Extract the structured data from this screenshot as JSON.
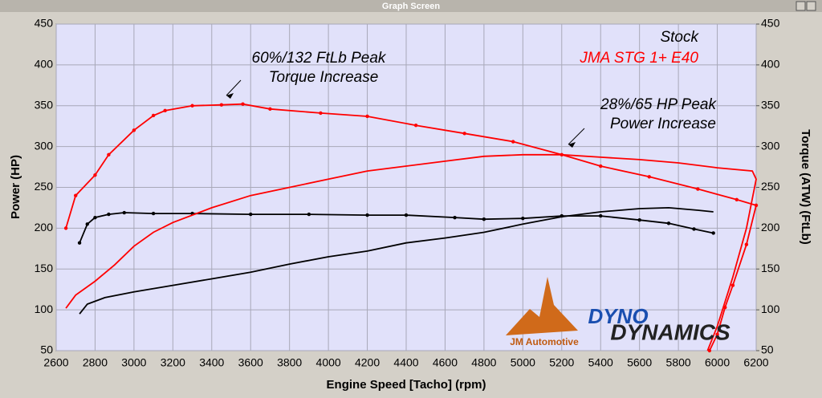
{
  "window_title": "Graph Screen",
  "logo": {
    "company": "JM Automotive",
    "brand_top": "DYNO",
    "brand_bottom": "DYNAMICS"
  },
  "chart_data": {
    "type": "line",
    "xlabel": "Engine Speed [Tacho] (rpm)",
    "ylabel": "Power (HP)",
    "y2label": "Torque (ATW) (FtLb)",
    "xlim": [
      2600,
      6200
    ],
    "xticks": [
      2600,
      2800,
      3000,
      3200,
      3400,
      3600,
      3800,
      4000,
      4200,
      4400,
      4600,
      4800,
      5000,
      5200,
      5400,
      5600,
      5800,
      6000,
      6200
    ],
    "ylim": [
      50,
      450
    ],
    "yticks": [
      50,
      100,
      150,
      200,
      250,
      300,
      350,
      400,
      450
    ],
    "y2lim": [
      50,
      450
    ],
    "y2ticks": [
      50,
      100,
      150,
      200,
      250,
      300,
      350,
      400,
      450
    ],
    "grid": true,
    "legend": {
      "position": "upper right",
      "entries": [
        {
          "text": "Stock",
          "color": "#000000"
        },
        {
          "text": "JMA STG 1+ E40",
          "color": "#ff0000"
        }
      ]
    },
    "annotations": [
      {
        "lines": [
          "60%/132 FtLb Peak",
          "Torque Increase"
        ]
      },
      {
        "lines": [
          "28%/65 HP Peak",
          "Power Increase"
        ]
      }
    ],
    "series": [
      {
        "color": "#000000",
        "axis": "y",
        "markers": false,
        "x": [
          2720,
          2760,
          2850,
          3000,
          3200,
          3400,
          3600,
          3800,
          4000,
          4200,
          4400,
          4600,
          4800,
          5000,
          5200,
          5400,
          5600,
          5750,
          5900,
          5980
        ],
        "values": [
          95,
          107,
          115,
          122,
          130,
          138,
          146,
          156,
          165,
          172,
          182,
          188,
          195,
          205,
          214,
          220,
          224,
          225,
          222,
          220
        ]
      },
      {
        "color": "#000000",
        "axis": "y2",
        "markers": true,
        "x": [
          2720,
          2760,
          2800,
          2870,
          2950,
          3100,
          3300,
          3600,
          3900,
          4200,
          4400,
          4650,
          4800,
          5000,
          5200,
          5400,
          5600,
          5750,
          5880,
          5980
        ],
        "values": [
          182,
          205,
          213,
          217,
          219,
          218,
          218,
          217,
          217,
          216,
          216,
          213,
          211,
          212,
          215,
          215,
          210,
          206,
          199,
          194
        ]
      },
      {
        "color": "#ff0000",
        "axis": "y",
        "markers": false,
        "x": [
          2650,
          2700,
          2800,
          2900,
          3000,
          3100,
          3200,
          3400,
          3600,
          3800,
          4000,
          4200,
          4400,
          4600,
          4800,
          5000,
          5200,
          5400,
          5600,
          5800,
          6000,
          6180,
          6200,
          6150,
          6080,
          6000,
          5950
        ],
        "values": [
          102,
          118,
          135,
          155,
          178,
          195,
          207,
          225,
          240,
          250,
          260,
          270,
          276,
          282,
          288,
          290,
          290,
          287,
          284,
          280,
          274,
          270,
          260,
          200,
          140,
          80,
          50
        ]
      },
      {
        "color": "#ff0000",
        "axis": "y2",
        "markers": true,
        "x": [
          2650,
          2700,
          2800,
          2870,
          3000,
          3100,
          3160,
          3300,
          3450,
          3560,
          3700,
          3960,
          4200,
          4450,
          4700,
          4950,
          5200,
          5400,
          5650,
          5900,
          6100,
          6200,
          6150,
          6080,
          6040,
          6000,
          5960
        ],
        "values": [
          200,
          240,
          265,
          290,
          320,
          338,
          344,
          350,
          351,
          352,
          346,
          341,
          337,
          326,
          316,
          306,
          290,
          276,
          263,
          248,
          235,
          228,
          180,
          130,
          103,
          70,
          50
        ]
      }
    ]
  }
}
